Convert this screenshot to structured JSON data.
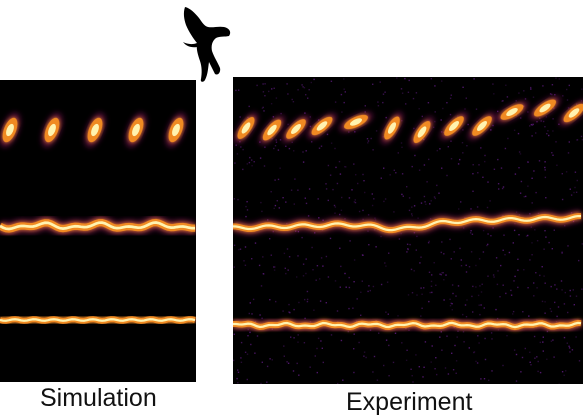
{
  "panels": {
    "simulation": {
      "label": "Simulation"
    },
    "experiment": {
      "label": "Experiment"
    }
  },
  "icon": {
    "name": "raven-icon"
  },
  "colors": {
    "background": "#000000",
    "glow_core": "#fff3b0",
    "glow_mid": "#f08a24",
    "glow_edge": "#9c1a6a",
    "noise": "#5a1a7a"
  }
}
